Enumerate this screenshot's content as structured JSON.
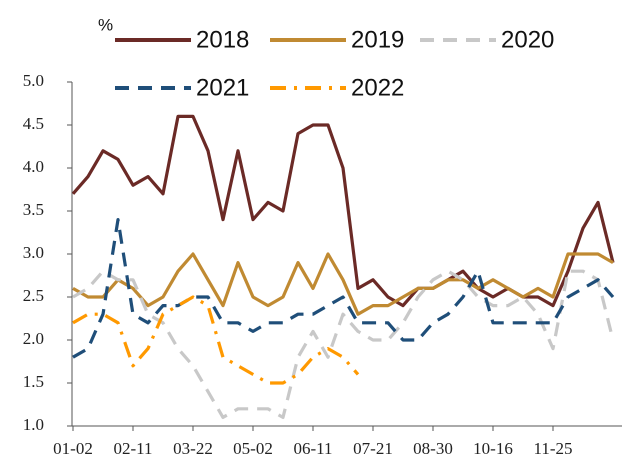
{
  "chart_data": {
    "type": "line",
    "y_label": "%",
    "categories": [
      "01-02",
      null,
      null,
      null,
      "02-11",
      null,
      null,
      null,
      "03-22",
      null,
      null,
      null,
      "05-02",
      null,
      null,
      null,
      "06-11",
      null,
      null,
      null,
      "07-21",
      null,
      null,
      null,
      "08-30",
      null,
      null,
      null,
      "10-16",
      null,
      null,
      null,
      "11-25",
      null,
      null,
      null,
      null
    ],
    "ylim": [
      1,
      5
    ],
    "yticks": [
      {
        "value": 1,
        "label": "1.0"
      },
      {
        "value": 1.5,
        "label": "1.5"
      },
      {
        "value": 2,
        "label": "2.0"
      },
      {
        "value": 2.5,
        "label": "2.5"
      },
      {
        "value": 3,
        "label": "3.0"
      },
      {
        "value": 3.5,
        "label": "3.5"
      },
      {
        "value": 4,
        "label": "4.0"
      },
      {
        "value": 4.5,
        "label": "4.5"
      },
      {
        "value": 5,
        "label": "5.0"
      }
    ],
    "grid": false,
    "series": [
      {
        "name": "2018",
        "color": "#6b2a26",
        "style": "solid",
        "values": [
          3.7,
          3.9,
          4.2,
          4.1,
          3.8,
          3.9,
          3.7,
          4.6,
          4.6,
          4.2,
          3.4,
          4.2,
          3.4,
          3.6,
          3.5,
          4.4,
          4.5,
          4.5,
          4.0,
          2.6,
          2.7,
          2.5,
          2.4,
          2.6,
          2.6,
          2.7,
          2.8,
          2.6,
          2.5,
          2.6,
          2.5,
          2.5,
          2.4,
          2.8,
          3.3,
          3.6,
          2.9
        ]
      },
      {
        "name": "2019",
        "color": "#c08a32",
        "style": "solid",
        "values": [
          2.6,
          2.5,
          2.5,
          2.7,
          2.6,
          2.4,
          2.5,
          2.8,
          3.0,
          2.7,
          2.4,
          2.9,
          2.5,
          2.4,
          2.5,
          2.9,
          2.6,
          3.0,
          2.7,
          2.3,
          2.4,
          2.4,
          2.5,
          2.6,
          2.6,
          2.7,
          2.7,
          2.6,
          2.7,
          2.6,
          2.5,
          2.6,
          2.5,
          3.0,
          3.0,
          3.0,
          2.9
        ]
      },
      {
        "name": "2020",
        "color": "#c8c8c8",
        "style": "dashed",
        "values": [
          2.5,
          2.6,
          2.8,
          2.7,
          2.7,
          2.3,
          2.2,
          1.9,
          1.7,
          1.4,
          1.1,
          1.2,
          1.2,
          1.2,
          1.1,
          1.8,
          2.1,
          1.8,
          2.3,
          2.1,
          2.0,
          2.0,
          2.2,
          2.5,
          2.7,
          2.8,
          2.7,
          2.5,
          2.4,
          2.4,
          2.5,
          2.3,
          1.9,
          2.8,
          2.8,
          2.7,
          2.0
        ]
      },
      {
        "name": "2021",
        "color": "#1f4e79",
        "style": "dashed",
        "values": [
          1.8,
          1.9,
          2.3,
          3.4,
          2.3,
          2.2,
          2.4,
          2.4,
          2.5,
          2.5,
          2.2,
          2.2,
          2.1,
          2.2,
          2.2,
          2.3,
          2.3,
          2.4,
          2.5,
          2.2,
          2.2,
          2.2,
          2.0,
          2.0,
          2.2,
          2.3,
          2.5,
          2.8,
          2.2,
          2.2,
          2.2,
          2.2,
          2.2,
          2.5,
          2.6,
          2.7,
          2.5
        ]
      },
      {
        "name": "2022",
        "color": "#ff9900",
        "style": "dashdot",
        "values": [
          2.2,
          2.3,
          2.3,
          2.2,
          1.7,
          1.9,
          2.3,
          2.4,
          2.5,
          2.4,
          1.8,
          1.7,
          1.6,
          1.5,
          1.5,
          1.6,
          1.8,
          1.9,
          1.8,
          1.6,
          null,
          null,
          null,
          null,
          null,
          null,
          null,
          null,
          null,
          null,
          null,
          null,
          null,
          null,
          null,
          null,
          null
        ]
      }
    ]
  }
}
